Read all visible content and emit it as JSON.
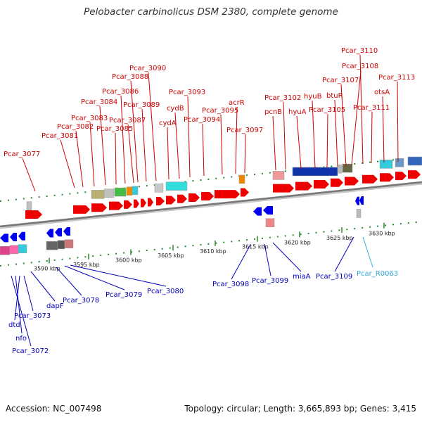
{
  "title": "Pelobacter carbinolicus DSM 2380, complete genome",
  "footer": {
    "accession": "Accession: NC_007498",
    "topology": "Topology: circular; Length: 3,665,893 bp; Genes: 3,415"
  },
  "colors": {
    "forward_label": "#cc0000",
    "reverse_label": "#0000bb",
    "rna_label": "#33aadd",
    "forward_gene": "#ee0000",
    "reverse_gene": "#0000ee",
    "backbone": "#777777"
  },
  "ticks": [
    "3590 kbp",
    "3595 kbp",
    "3600 kbp",
    "3605 kbp",
    "3610 kbp",
    "3615 kbp",
    "3620 kbp",
    "3625 kbp",
    "3630 kbp"
  ],
  "forward_labels": [
    {
      "name": "Pcar_3077",
      "ax": 50,
      "ay": 272
    },
    {
      "name": "Pcar_3081",
      "ax": 106,
      "ay": 267
    },
    {
      "name": "Pcar_3082",
      "ax": 118,
      "ay": 266
    },
    {
      "name": "Pcar_3083",
      "ax": 134,
      "ay": 265
    },
    {
      "name": "Pcar_3084",
      "ax": 150,
      "ay": 263
    },
    {
      "name": "Pcar_3085",
      "ax": 165,
      "ay": 262
    },
    {
      "name": "Pcar_3086",
      "ax": 178,
      "ay": 261
    },
    {
      "name": "Pcar_3087",
      "ax": 190,
      "ay": 260
    },
    {
      "name": "Pcar_3088",
      "ax": 196,
      "ay": 259
    },
    {
      "name": "Pcar_3089",
      "ax": 208,
      "ay": 258
    },
    {
      "name": "Pcar_3090",
      "ax": 222,
      "ay": 257
    },
    {
      "name": "cydA",
      "ax": 240,
      "ay": 255
    },
    {
      "name": "cydB",
      "ax": 255,
      "ay": 254
    },
    {
      "name": "Pcar_3093",
      "ax": 270,
      "ay": 252
    },
    {
      "name": "Pcar_3094",
      "ax": 290,
      "ay": 250
    },
    {
      "name": "Pcar_3095",
      "ax": 316,
      "ay": 248
    },
    {
      "name": "acrR",
      "ax": 335,
      "ay": 247
    },
    {
      "name": "Pcar_3097",
      "ax": 348,
      "ay": 246
    },
    {
      "name": "pcnB",
      "ax": 392,
      "ay": 242
    },
    {
      "name": "Pcar_3102",
      "ax": 406,
      "ay": 241
    },
    {
      "name": "hyuA",
      "ax": 428,
      "ay": 240
    },
    {
      "name": "hyuB",
      "ax": 448,
      "ay": 239
    },
    {
      "name": "Pcar_3105",
      "ax": 465,
      "ay": 238
    },
    {
      "name": "btuR",
      "ax": 480,
      "ay": 237
    },
    {
      "name": "Pcar_3107",
      "ax": 492,
      "ay": 236
    },
    {
      "name": "Pcar_3108",
      "ax": 500,
      "ay": 235
    },
    {
      "name": "Pcar_3110",
      "ax": 516,
      "ay": 233
    },
    {
      "name": "Pcar_3111",
      "ax": 528,
      "ay": 232
    },
    {
      "name": "otsA",
      "ax": 546,
      "ay": 231
    },
    {
      "name": "Pcar_3113",
      "ax": 566,
      "ay": 230
    }
  ],
  "reverse_labels": [
    {
      "name": "Pcar_3072",
      "ax": 16,
      "ay": 392
    },
    {
      "name": "nfo",
      "ax": 22,
      "ay": 392
    },
    {
      "name": "dtd",
      "ax": 28,
      "ay": 392
    },
    {
      "name": "Pcar_3073",
      "ax": 34,
      "ay": 392
    },
    {
      "name": "dapF",
      "ax": 44,
      "ay": 386
    },
    {
      "name": "Pcar_3078",
      "ax": 80,
      "ay": 380
    },
    {
      "name": "Pcar_3079",
      "ax": 92,
      "ay": 378
    },
    {
      "name": "Pcar_3080",
      "ax": 100,
      "ay": 377
    },
    {
      "name": "Pcar_3098",
      "ax": 356,
      "ay": 348
    },
    {
      "name": "Pcar_3099",
      "ax": 376,
      "ay": 347
    },
    {
      "name": "miaA",
      "ax": 388,
      "ay": 345
    },
    {
      "name": "Pcar_3109",
      "ax": 503,
      "ay": 337
    }
  ],
  "rna_labels": [
    {
      "name": "Pcar_R0063",
      "ax": 516,
      "ay": 337
    }
  ]
}
